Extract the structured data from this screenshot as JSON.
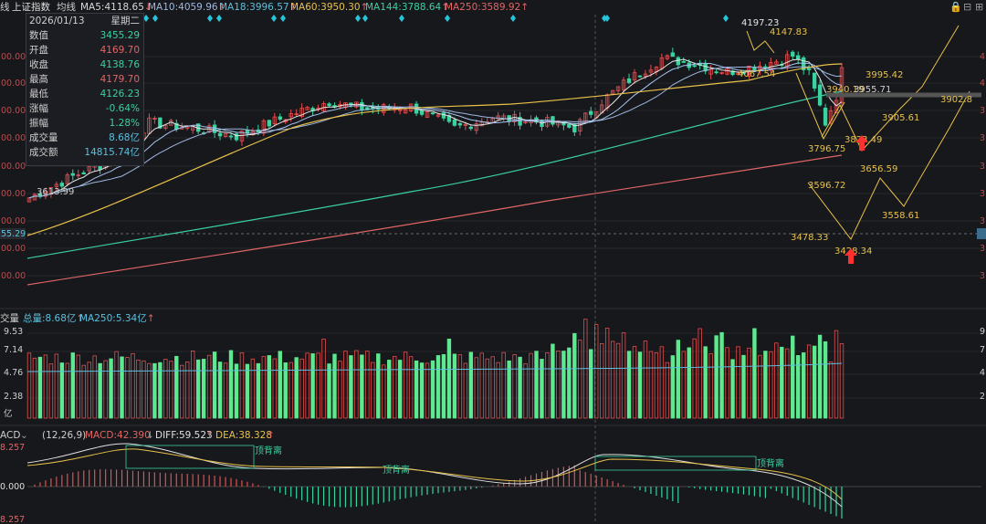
{
  "header": {
    "period": "线",
    "index_name": "上证指数",
    "mode": "均线",
    "ma": [
      {
        "label": "MA5:4118.65",
        "arrow": "↓",
        "color": "#d8d8d8"
      },
      {
        "label": "MA10:4059.96",
        "arrow": "↑",
        "color": "#e8c14a"
      },
      {
        "label": "MA18:3996.57",
        "arrow": "↑",
        "color": "#5bc0de"
      },
      {
        "label": "MA60:3950.30",
        "arrow": "↑",
        "color": "#e8c14a"
      },
      {
        "label": "MA144:3788.64",
        "arrow": "↑",
        "color": "#3ad29f"
      },
      {
        "label": "MA250:3589.92",
        "arrow": "↑",
        "color": "#e06666"
      }
    ],
    "icons": [
      "lock-icon",
      "minus-icon",
      "plus-icon",
      "expand-icon"
    ]
  },
  "info": {
    "date": "2026/01/13",
    "weekday": "星期二",
    "rows": [
      {
        "k": "数值",
        "v": "3455.29",
        "color": "#3ad29f"
      },
      {
        "k": "开盘",
        "v": "4169.70",
        "color": "#e06666"
      },
      {
        "k": "收盘",
        "v": "4138.76",
        "color": "#3ad29f"
      },
      {
        "k": "最高",
        "v": "4179.70",
        "color": "#e06666"
      },
      {
        "k": "最低",
        "v": "4126.23",
        "color": "#3ad29f"
      },
      {
        "k": "涨幅",
        "v": "-0.64%",
        "color": "#3ad29f"
      },
      {
        "k": "振幅",
        "v": "1.28%",
        "color": "#3ad29f"
      },
      {
        "k": "成交量",
        "v": "8.68亿",
        "color": "#5bc0de"
      },
      {
        "k": "成交额",
        "v": "14815.74亿",
        "color": "#5bc0de"
      }
    ]
  },
  "price_axis": {
    "left_labels": [
      "00.00",
      "00.00",
      "00.00",
      "00.00",
      "00.00",
      "00.00",
      "00.00",
      "00.00",
      "00.00",
      "00.00"
    ],
    "current": "55.29",
    "right_labels": [
      "4",
      "4",
      "3",
      "3",
      "3",
      "3",
      "3",
      "3",
      "3",
      "3"
    ]
  },
  "annotations": {
    "price_labels": [
      "4197.23",
      "4147.83",
      "4067.54",
      "3995.42",
      "3940.19",
      "3955.71",
      "3902.8",
      "3905.61",
      "3796.75",
      "3823.49",
      "3656.59",
      "3596.72",
      "3558.61",
      "3478.33",
      "3428.34",
      "3613.99"
    ]
  },
  "volume": {
    "title": "交量",
    "total": "总量:8.68亿",
    "total_arrow": "↑",
    "ma250": "MA250:5.34亿",
    "ma250_arrow": "↑",
    "axis": [
      "9.53",
      "7.14",
      "4.76",
      "2.38",
      "亿"
    ],
    "right_axis": [
      "9",
      "7",
      "4",
      "2"
    ]
  },
  "macd": {
    "title": "ACD",
    "params": "(12,26,9)",
    "macd": "MACD:42.390",
    "diff": "DIFF:59.523",
    "dea": "DEA:38.328",
    "axis": [
      "8.257",
      "0.000",
      "8.257"
    ],
    "signals": [
      "顶背离",
      "顶背离",
      "顶背离"
    ]
  },
  "chart_data": {
    "type": "candlestick",
    "title": "上证指数",
    "ma_lines": [
      "MA5",
      "MA10",
      "MA18",
      "MA60",
      "MA144",
      "MA250"
    ],
    "forecast_path_values": [
      3995.42,
      3905.61,
      3902.8,
      3823.49,
      3656.59,
      3558.61,
      3596.72,
      3478.33,
      3428.34
    ],
    "annotated_values": [
      4197.23,
      4147.83,
      4067.54,
      3940.19,
      3955.71,
      3796.75,
      3613.99
    ]
  }
}
